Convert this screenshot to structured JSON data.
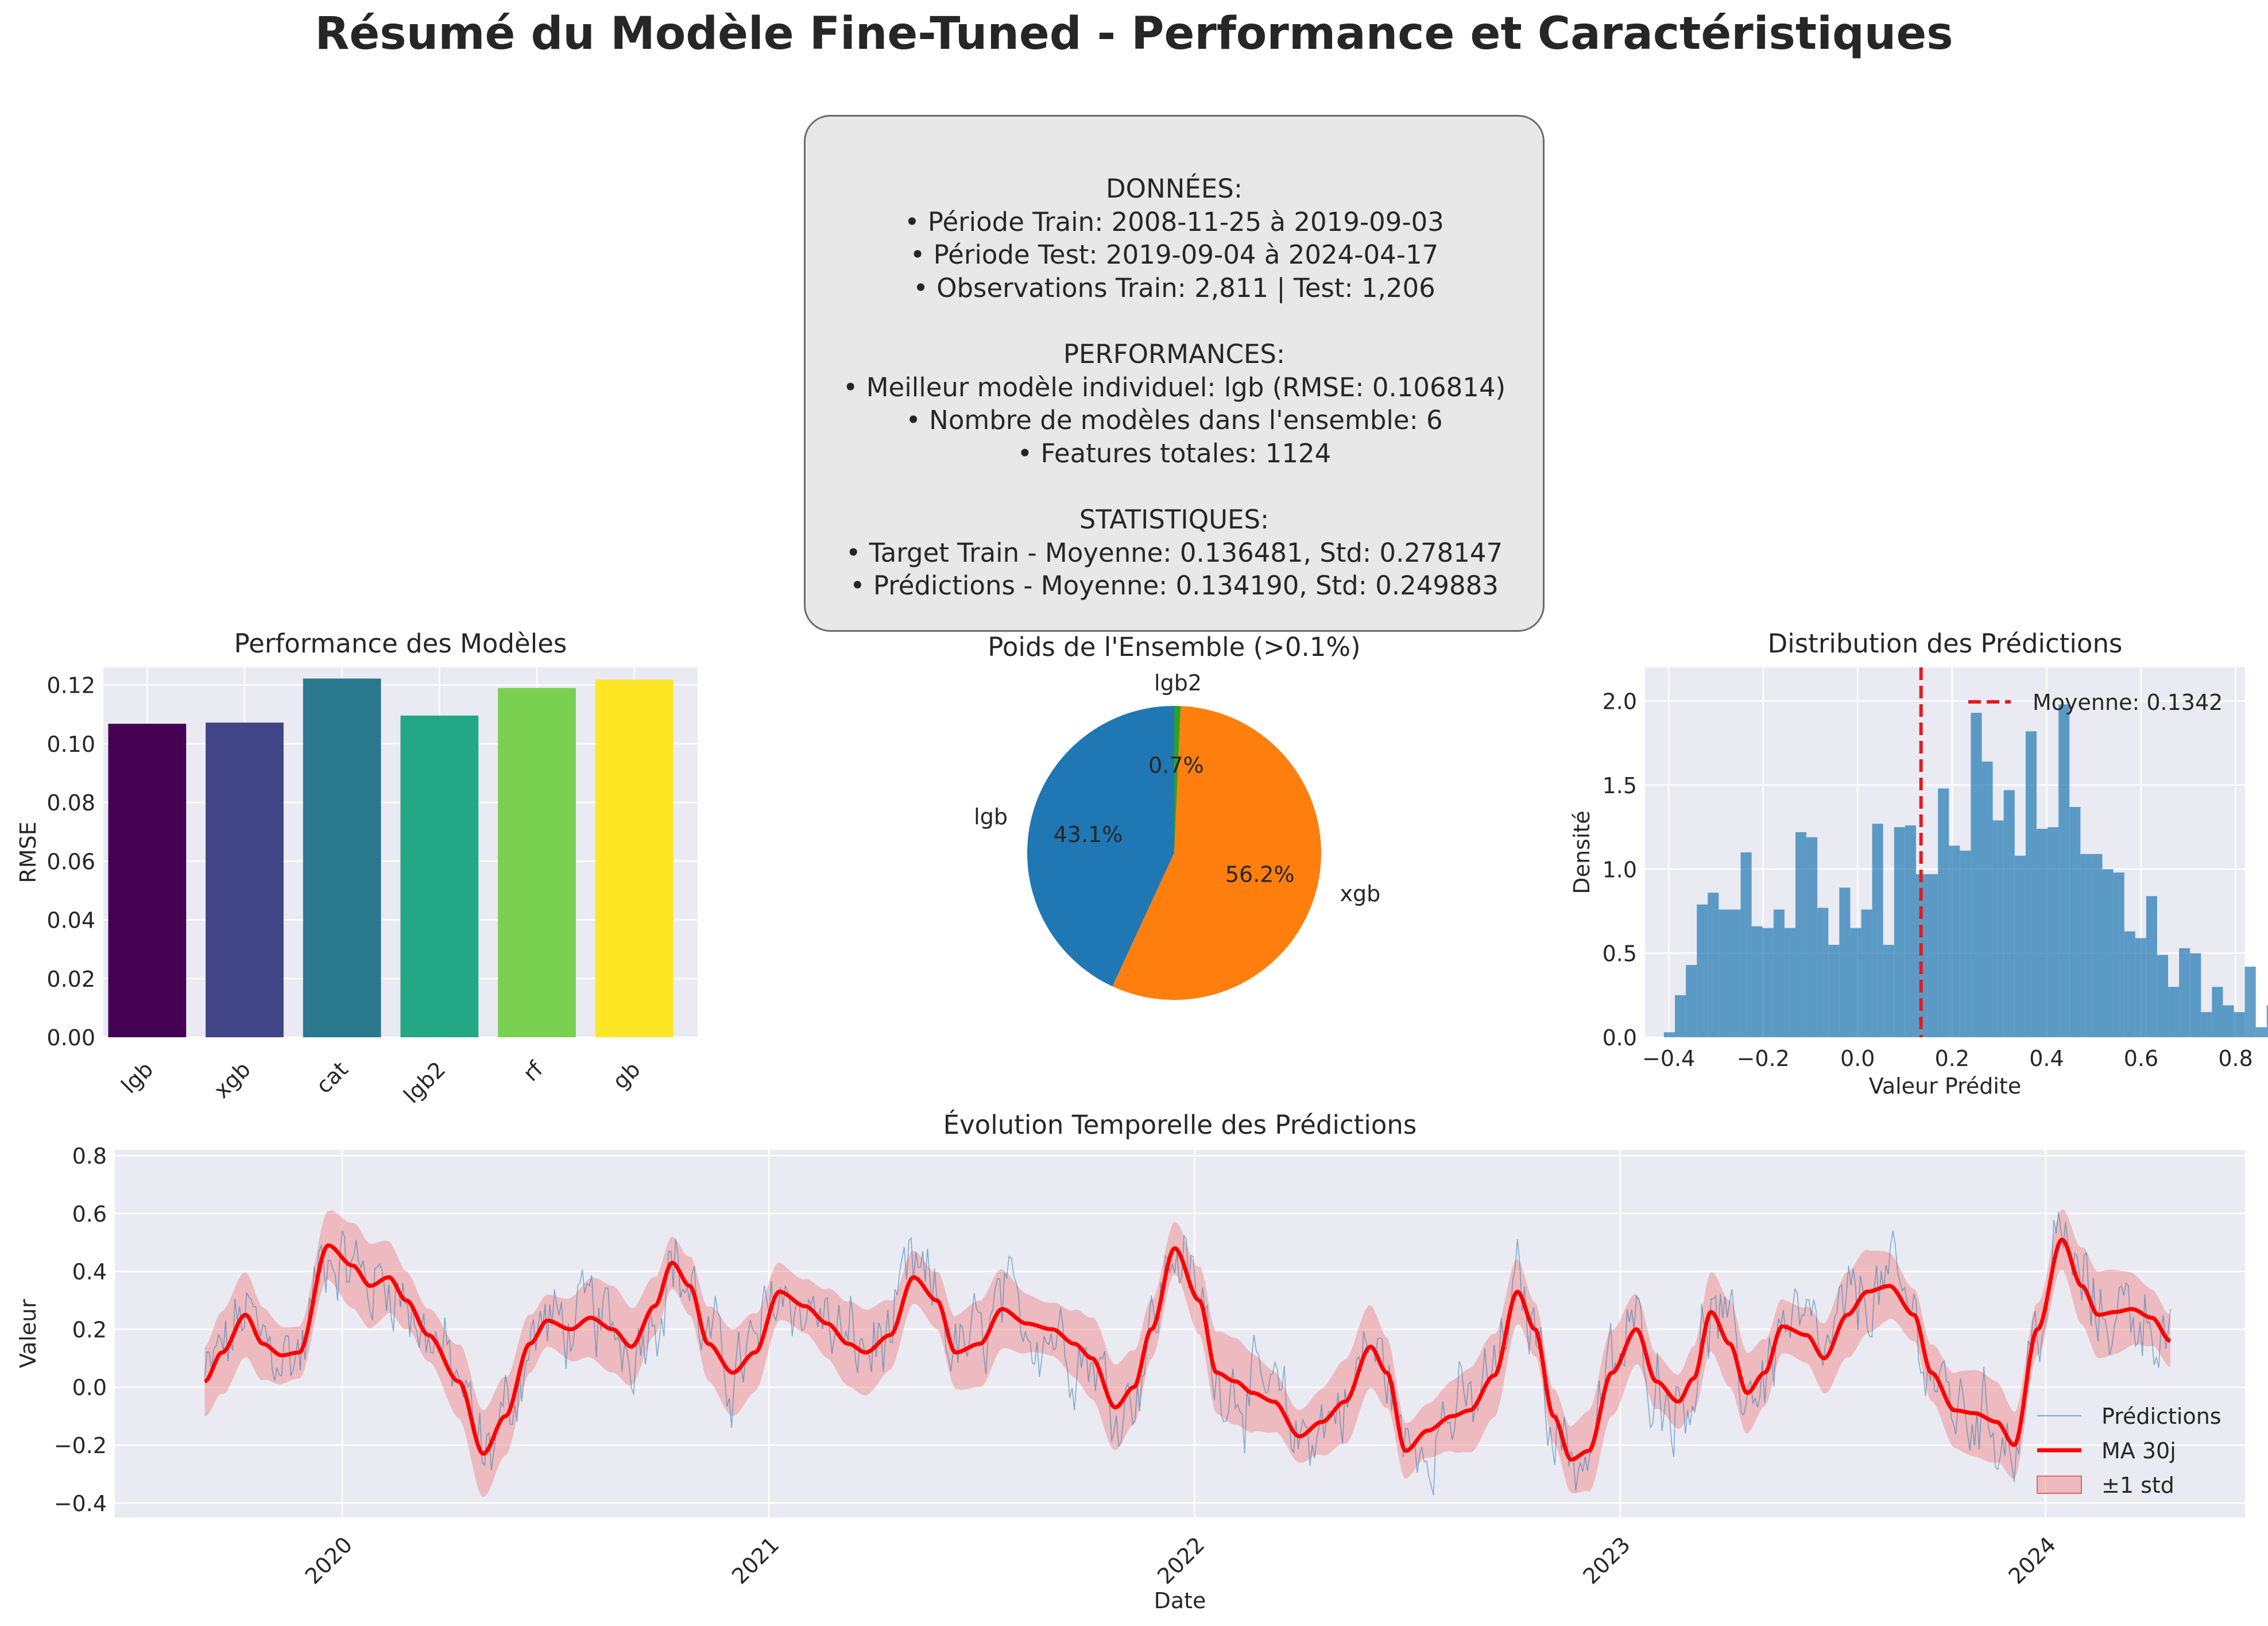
{
  "suptitle": "Résumé du Modèle Fine-Tuned - Performance et Caractéristiques",
  "info_box": {
    "sections": [
      {
        "lines": [
          "DONNÉES:",
          "• Période Train: 2008-11-25 à 2019-09-03",
          "• Période Test: 2019-09-04 à 2024-04-17",
          "• Observations Train: 2,811 | Test: 1,206"
        ]
      },
      {
        "lines": [
          "PERFORMANCES:",
          "• Meilleur modèle individuel: lgb (RMSE: 0.106814)",
          "• Nombre de modèles dans l'ensemble: 6",
          "• Features totales: 1124"
        ]
      },
      {
        "lines": [
          "STATISTIQUES:",
          "• Target Train - Moyenne: 0.136481, Std: 0.278147",
          "• Prédictions - Moyenne: 0.134190, Std: 0.249883"
        ]
      }
    ]
  },
  "chart_data": [
    {
      "type": "bar",
      "title": "Performance des Modèles",
      "xlabel": "",
      "ylabel": "RMSE",
      "categories": [
        "lgb",
        "xgb",
        "cat",
        "lgb2",
        "rf",
        "gb"
      ],
      "values": [
        0.1068,
        0.1072,
        0.1222,
        0.1096,
        0.119,
        0.1218
      ],
      "colors": [
        "#440154",
        "#414487",
        "#2a788e",
        "#22a884",
        "#7ad151",
        "#fde725"
      ],
      "ylim": [
        0,
        0.126
      ],
      "yticks": [
        "0.00",
        "0.02",
        "0.04",
        "0.06",
        "0.08",
        "0.10",
        "0.12"
      ],
      "grid": true
    },
    {
      "type": "pie",
      "title": "Poids de l'Ensemble (>0.1%)",
      "labels": [
        "lgb",
        "xgb",
        "lgb2"
      ],
      "values": [
        43.1,
        56.2,
        0.7
      ],
      "pct_labels": [
        "43.1%",
        "56.2%",
        "0.7%"
      ],
      "colors": [
        "#1f77b4",
        "#ff7f0e",
        "#2ca02c"
      ]
    },
    {
      "type": "bar",
      "subtype": "histogram",
      "title": "Distribution des Prédictions",
      "xlabel": "Valeur Prédite",
      "ylabel": "Densité",
      "bin_start": -0.41,
      "bin_width": 0.0232,
      "densities": [
        0.03,
        0.25,
        0.43,
        0.79,
        0.86,
        0.76,
        0.76,
        1.1,
        0.66,
        0.65,
        0.76,
        0.65,
        1.22,
        1.19,
        0.77,
        0.55,
        0.89,
        0.65,
        0.76,
        1.27,
        0.55,
        1.25,
        1.26,
        0.97,
        0.97,
        1.48,
        1.14,
        1.11,
        1.93,
        1.64,
        1.29,
        1.47,
        1.08,
        1.82,
        1.24,
        1.25,
        1.98,
        1.37,
        1.09,
        1.09,
        1.0,
        0.98,
        0.63,
        0.59,
        0.84,
        0.49,
        0.3,
        0.53,
        0.5,
        0.15,
        0.3,
        0.19,
        0.15,
        0.42,
        0.06,
        0.19,
        0.1,
        0.3,
        0.17,
        0.2
      ],
      "mean": 0.1342,
      "mean_label": "Moyenne: 0.1342",
      "xlim": [
        -0.45,
        0.82
      ],
      "ylim": [
        0,
        2.2
      ],
      "xticks": [
        -0.4,
        -0.2,
        0.0,
        0.2,
        0.4,
        0.6,
        0.8
      ],
      "xtick_labels": [
        "−0.4",
        "−0.2",
        "0.0",
        "0.2",
        "0.4",
        "0.6",
        "0.8"
      ],
      "yticks": [
        0,
        0.5,
        1.0,
        1.5,
        2.0
      ],
      "ytick_labels": [
        "0.0",
        "0.5",
        "1.0",
        "1.5",
        "2.0"
      ],
      "color": "#1f77b4",
      "mean_color": "#e41a1c",
      "legend": "top-right",
      "grid": true
    },
    {
      "type": "line",
      "title": "Évolution Temporelle des Prédictions",
      "xlabel": "Date",
      "ylabel": "Valeur",
      "xlim": [
        "2019-06-20",
        "2024-06-20"
      ],
      "ylim": [
        -0.45,
        0.82
      ],
      "xticks": [
        "2020-01-01",
        "2021-01-01",
        "2022-01-01",
        "2023-01-01",
        "2024-01-01"
      ],
      "xtick_labels": [
        "2020",
        "2021",
        "2022",
        "2023",
        "2024"
      ],
      "yticks": [
        -0.4,
        -0.2,
        0.0,
        0.2,
        0.4,
        0.6,
        0.8
      ],
      "ytick_labels": [
        "−0.4",
        "−0.2",
        "0.0",
        "0.2",
        "0.4",
        "0.6",
        "0.8"
      ],
      "ma_points": [
        [
          "2019-09-05",
          0.02
        ],
        [
          "2019-09-20",
          0.12
        ],
        [
          "2019-10-10",
          0.25
        ],
        [
          "2019-10-25",
          0.15
        ],
        [
          "2019-11-10",
          0.11
        ],
        [
          "2019-11-25",
          0.12
        ],
        [
          "2019-12-20",
          0.49
        ],
        [
          "2020-01-10",
          0.42
        ],
        [
          "2020-01-25",
          0.35
        ],
        [
          "2020-02-10",
          0.38
        ],
        [
          "2020-02-25",
          0.3
        ],
        [
          "2020-03-15",
          0.18
        ],
        [
          "2020-04-10",
          0.02
        ],
        [
          "2020-05-01",
          -0.23
        ],
        [
          "2020-05-20",
          -0.1
        ],
        [
          "2020-06-10",
          0.15
        ],
        [
          "2020-06-25",
          0.23
        ],
        [
          "2020-07-15",
          0.2
        ],
        [
          "2020-08-01",
          0.24
        ],
        [
          "2020-08-20",
          0.2
        ],
        [
          "2020-09-05",
          0.14
        ],
        [
          "2020-09-25",
          0.28
        ],
        [
          "2020-10-10",
          0.43
        ],
        [
          "2020-10-25",
          0.35
        ],
        [
          "2020-11-10",
          0.15
        ],
        [
          "2020-12-01",
          0.05
        ],
        [
          "2020-12-20",
          0.12
        ],
        [
          "2021-01-10",
          0.33
        ],
        [
          "2021-02-01",
          0.28
        ],
        [
          "2021-02-20",
          0.22
        ],
        [
          "2021-03-10",
          0.15
        ],
        [
          "2021-03-25",
          0.12
        ],
        [
          "2021-04-15",
          0.18
        ],
        [
          "2021-05-05",
          0.38
        ],
        [
          "2021-05-25",
          0.3
        ],
        [
          "2021-06-10",
          0.12
        ],
        [
          "2021-07-01",
          0.15
        ],
        [
          "2021-07-20",
          0.27
        ],
        [
          "2021-08-10",
          0.22
        ],
        [
          "2021-09-01",
          0.2
        ],
        [
          "2021-09-20",
          0.15
        ],
        [
          "2021-10-05",
          0.1
        ],
        [
          "2021-10-25",
          -0.07
        ],
        [
          "2021-11-10",
          0.0
        ],
        [
          "2021-11-25",
          0.2
        ],
        [
          "2021-12-15",
          0.48
        ],
        [
          "2022-01-05",
          0.3
        ],
        [
          "2022-01-20",
          0.05
        ],
        [
          "2022-02-05",
          0.02
        ],
        [
          "2022-02-20",
          -0.02
        ],
        [
          "2022-03-10",
          -0.05
        ],
        [
          "2022-04-01",
          -0.17
        ],
        [
          "2022-04-20",
          -0.12
        ],
        [
          "2022-05-10",
          -0.05
        ],
        [
          "2022-06-01",
          0.14
        ],
        [
          "2022-06-15",
          0.05
        ],
        [
          "2022-07-01",
          -0.22
        ],
        [
          "2022-07-20",
          -0.15
        ],
        [
          "2022-08-10",
          -0.1
        ],
        [
          "2022-08-25",
          -0.08
        ],
        [
          "2022-09-15",
          0.04
        ],
        [
          "2022-10-05",
          0.33
        ],
        [
          "2022-10-20",
          0.2
        ],
        [
          "2022-11-05",
          -0.1
        ],
        [
          "2022-11-20",
          -0.25
        ],
        [
          "2022-12-05",
          -0.22
        ],
        [
          "2022-12-25",
          0.05
        ],
        [
          "2023-01-15",
          0.2
        ],
        [
          "2023-02-01",
          0.02
        ],
        [
          "2023-02-20",
          -0.05
        ],
        [
          "2023-03-05",
          0.03
        ],
        [
          "2023-03-20",
          0.26
        ],
        [
          "2023-04-05",
          0.15
        ],
        [
          "2023-04-20",
          -0.02
        ],
        [
          "2023-05-05",
          0.05
        ],
        [
          "2023-05-20",
          0.21
        ],
        [
          "2023-06-10",
          0.18
        ],
        [
          "2023-06-25",
          0.1
        ],
        [
          "2023-07-15",
          0.25
        ],
        [
          "2023-08-01",
          0.33
        ],
        [
          "2023-08-20",
          0.35
        ],
        [
          "2023-09-10",
          0.25
        ],
        [
          "2023-09-25",
          0.05
        ],
        [
          "2023-10-15",
          -0.08
        ],
        [
          "2023-11-01",
          -0.09
        ],
        [
          "2023-11-20",
          -0.12
        ],
        [
          "2023-12-05",
          -0.2
        ],
        [
          "2023-12-25",
          0.2
        ],
        [
          "2024-01-15",
          0.51
        ],
        [
          "2024-02-01",
          0.35
        ],
        [
          "2024-02-15",
          0.25
        ],
        [
          "2024-03-01",
          0.26
        ],
        [
          "2024-03-15",
          0.27
        ],
        [
          "2024-04-01",
          0.24
        ],
        [
          "2024-04-17",
          0.16
        ]
      ],
      "std_width": 0.12,
      "series": [
        {
          "name": "Prédictions",
          "color": "#1f77b4"
        },
        {
          "name": "MA 30j",
          "color": "#ff0000"
        },
        {
          "name": "±1 std",
          "color": "#f08080"
        }
      ],
      "legend": "bottom-right",
      "grid": true
    }
  ]
}
